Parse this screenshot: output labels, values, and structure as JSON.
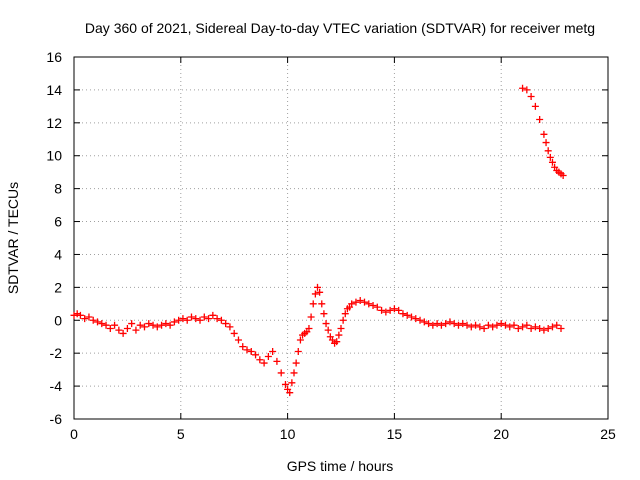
{
  "chart_data": {
    "type": "scatter",
    "title": "Day 360 of 2021, Sidereal Day-to-day VTEC variation (SDTVAR) for receiver metg",
    "xlabel": "GPS time / hours",
    "ylabel": "SDTVAR / TECUs",
    "xlim": [
      0,
      25
    ],
    "ylim": [
      -6,
      16
    ],
    "x_ticks": [
      0,
      5,
      10,
      15,
      20,
      25
    ],
    "y_ticks": [
      -6,
      -4,
      -2,
      0,
      2,
      4,
      6,
      8,
      10,
      12,
      14,
      16
    ],
    "x_tick_labels": [
      "0",
      "5",
      "10",
      "15",
      "20",
      "25"
    ],
    "y_tick_labels": [
      "-6",
      "-4",
      "-2",
      "0",
      "2",
      "4",
      "6",
      "8",
      "10",
      "12",
      "14",
      "16"
    ],
    "grid": true,
    "marker": "+",
    "series": [
      {
        "name": "SDTVAR",
        "color": "#ff0000",
        "x": [
          0.0,
          0.15,
          0.3,
          0.5,
          0.7,
          0.9,
          1.1,
          1.3,
          1.5,
          1.7,
          1.9,
          2.1,
          2.3,
          2.5,
          2.7,
          2.9,
          3.1,
          3.3,
          3.5,
          3.7,
          3.9,
          4.1,
          4.3,
          4.5,
          4.7,
          4.9,
          5.1,
          5.3,
          5.5,
          5.7,
          5.9,
          6.1,
          6.3,
          6.5,
          6.7,
          6.9,
          7.1,
          7.3,
          7.5,
          7.7,
          7.9,
          8.1,
          8.3,
          8.5,
          8.7,
          8.9,
          9.1,
          9.3,
          9.5,
          9.7,
          9.9,
          10.0,
          10.1,
          10.2,
          10.3,
          10.4,
          10.5,
          10.6,
          10.7,
          10.8,
          10.9,
          11.0,
          11.1,
          11.2,
          11.3,
          11.4,
          11.5,
          11.6,
          11.7,
          11.8,
          11.9,
          12.0,
          12.1,
          12.2,
          12.3,
          12.4,
          12.5,
          12.6,
          12.7,
          12.8,
          12.9,
          13.0,
          13.2,
          13.4,
          13.6,
          13.8,
          14.0,
          14.2,
          14.4,
          14.6,
          14.8,
          15.0,
          15.2,
          15.4,
          15.6,
          15.8,
          16.0,
          16.2,
          16.4,
          16.6,
          16.8,
          17.0,
          17.2,
          17.4,
          17.6,
          17.8,
          18.0,
          18.2,
          18.4,
          18.6,
          18.8,
          19.0,
          19.2,
          19.4,
          19.6,
          19.8,
          20.0,
          20.2,
          20.4,
          20.6,
          20.8,
          21.0,
          21.2,
          21.4,
          21.6,
          21.8,
          22.0,
          22.2,
          22.4,
          22.6,
          22.8,
          21.0,
          21.2,
          21.4,
          21.6,
          21.8,
          22.0,
          22.1,
          22.2,
          22.3,
          22.4,
          22.5,
          22.6,
          22.7,
          22.8,
          22.9
        ],
        "y": [
          0.3,
          0.4,
          0.3,
          0.1,
          0.2,
          0.0,
          -0.1,
          -0.2,
          -0.3,
          -0.5,
          -0.3,
          -0.6,
          -0.8,
          -0.5,
          -0.2,
          -0.6,
          -0.3,
          -0.4,
          -0.2,
          -0.3,
          -0.4,
          -0.3,
          -0.2,
          -0.3,
          -0.1,
          0.0,
          0.1,
          0.0,
          0.2,
          0.1,
          0.0,
          0.2,
          0.1,
          0.3,
          0.1,
          0.0,
          -0.2,
          -0.4,
          -0.8,
          -1.2,
          -1.6,
          -1.8,
          -1.9,
          -2.1,
          -2.4,
          -2.6,
          -2.2,
          -1.9,
          -2.5,
          -3.2,
          -3.9,
          -4.2,
          -4.4,
          -3.8,
          -3.2,
          -2.6,
          -1.9,
          -1.2,
          -0.9,
          -0.8,
          -0.7,
          -0.5,
          0.2,
          1.0,
          1.6,
          2.0,
          1.7,
          1.0,
          0.4,
          -0.2,
          -0.6,
          -1.0,
          -1.2,
          -1.4,
          -1.3,
          -0.9,
          -0.5,
          0.0,
          0.4,
          0.7,
          0.8,
          1.0,
          1.1,
          1.2,
          1.1,
          1.0,
          0.9,
          0.8,
          0.6,
          0.5,
          0.6,
          0.7,
          0.6,
          0.4,
          0.3,
          0.2,
          0.1,
          0.0,
          -0.1,
          -0.2,
          -0.3,
          -0.2,
          -0.3,
          -0.2,
          -0.1,
          -0.2,
          -0.3,
          -0.2,
          -0.3,
          -0.4,
          -0.3,
          -0.4,
          -0.5,
          -0.3,
          -0.4,
          -0.3,
          -0.2,
          -0.3,
          -0.4,
          -0.3,
          -0.5,
          -0.4,
          -0.3,
          -0.5,
          -0.4,
          -0.5,
          -0.6,
          -0.5,
          -0.4,
          -0.3,
          -0.5,
          14.1,
          14.0,
          13.6,
          13.0,
          12.2,
          11.3,
          10.8,
          10.3,
          9.9,
          9.6,
          9.3,
          9.1,
          9.0,
          8.9,
          8.8
        ]
      }
    ]
  }
}
